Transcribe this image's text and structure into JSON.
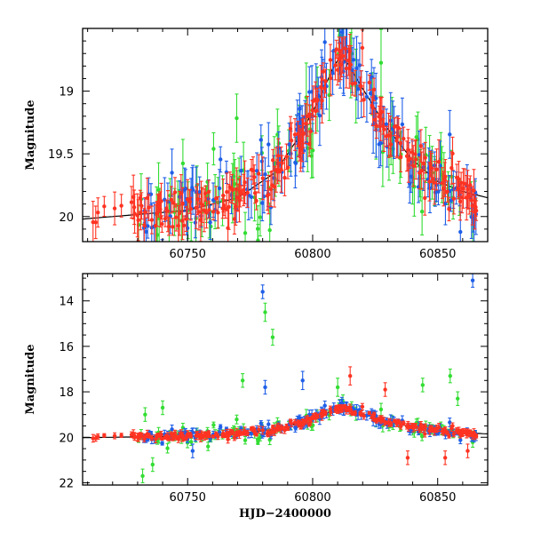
{
  "chart_data": [
    {
      "id": "top",
      "type": "scatter",
      "title": "",
      "xlabel": "",
      "ylabel": "Magnitude",
      "xlim": [
        60708,
        60870
      ],
      "ylim": [
        20.2,
        18.5
      ],
      "y_inverted": true,
      "xticks_major": [
        60750,
        60800,
        60850
      ],
      "xtick_labels": [
        "60750",
        "60800",
        "60850"
      ],
      "xticks_minor_step": 10,
      "yticks_major": [
        19,
        19.5,
        20
      ],
      "ytick_labels": [
        "19",
        "19.5",
        "20"
      ],
      "yticks_minor_step": 0.1,
      "model_curve": [
        [
          60708,
          20.02
        ],
        [
          60750,
          19.95
        ],
        [
          60770,
          19.85
        ],
        [
          60785,
          19.65
        ],
        [
          60795,
          19.35
        ],
        [
          60803,
          19.05
        ],
        [
          60808,
          18.82
        ],
        [
          60811,
          18.72
        ],
        [
          60814,
          18.78
        ],
        [
          60820,
          18.98
        ],
        [
          60830,
          19.3
        ],
        [
          60840,
          19.55
        ],
        [
          60850,
          19.72
        ],
        [
          60860,
          19.8
        ],
        [
          60870,
          19.85
        ]
      ],
      "series_colors": {
        "green": "#33dd33",
        "blue": "#1f5fe8",
        "red": "#ff3322"
      }
    },
    {
      "id": "bottom",
      "type": "scatter",
      "title": "",
      "xlabel": "HJD−2400000",
      "ylabel": "Magnitude",
      "xlim": [
        60708,
        60870
      ],
      "ylim": [
        22.1,
        12.8
      ],
      "y_inverted": true,
      "xticks_major": [
        60750,
        60800,
        60850
      ],
      "xtick_labels": [
        "60750",
        "60800",
        "60850"
      ],
      "xticks_minor_step": 10,
      "yticks_major": [
        14,
        16,
        18,
        20,
        22
      ],
      "ytick_labels": [
        "14",
        "16",
        "18",
        "20",
        "22"
      ],
      "yticks_minor_step": 0.5,
      "model_curve": [
        [
          60708,
          20.02
        ],
        [
          60750,
          19.95
        ],
        [
          60770,
          19.85
        ],
        [
          60785,
          19.65
        ],
        [
          60795,
          19.35
        ],
        [
          60803,
          19.05
        ],
        [
          60808,
          18.82
        ],
        [
          60811,
          18.72
        ],
        [
          60814,
          18.78
        ],
        [
          60820,
          18.98
        ],
        [
          60830,
          19.3
        ],
        [
          60840,
          19.55
        ],
        [
          60850,
          19.72
        ],
        [
          60860,
          19.8
        ],
        [
          60870,
          19.85
        ]
      ],
      "outliers": [
        {
          "x": 60780,
          "y": 13.6,
          "err": 0.3,
          "color": "blue"
        },
        {
          "x": 60864,
          "y": 13.1,
          "err": 0.3,
          "color": "blue"
        },
        {
          "x": 60784,
          "y": 15.6,
          "err": 0.35,
          "color": "green"
        },
        {
          "x": 60781,
          "y": 14.5,
          "err": 0.4,
          "color": "green"
        },
        {
          "x": 60796,
          "y": 17.5,
          "err": 0.4,
          "color": "blue"
        },
        {
          "x": 60781,
          "y": 17.8,
          "err": 0.3,
          "color": "blue"
        },
        {
          "x": 60772,
          "y": 17.5,
          "err": 0.3,
          "color": "green"
        },
        {
          "x": 60815,
          "y": 17.3,
          "err": 0.4,
          "color": "red"
        },
        {
          "x": 60810,
          "y": 17.8,
          "err": 0.4,
          "color": "green"
        },
        {
          "x": 60829,
          "y": 17.9,
          "err": 0.3,
          "color": "red"
        },
        {
          "x": 60844,
          "y": 17.7,
          "err": 0.3,
          "color": "green"
        },
        {
          "x": 60855,
          "y": 17.3,
          "err": 0.3,
          "color": "green"
        },
        {
          "x": 60733,
          "y": 19.0,
          "err": 0.3,
          "color": "green"
        },
        {
          "x": 60740,
          "y": 18.7,
          "err": 0.3,
          "color": "green"
        },
        {
          "x": 60732,
          "y": 21.7,
          "err": 0.3,
          "color": "green"
        },
        {
          "x": 60736,
          "y": 21.2,
          "err": 0.3,
          "color": "green"
        },
        {
          "x": 60752,
          "y": 20.6,
          "err": 0.3,
          "color": "blue"
        },
        {
          "x": 60838,
          "y": 20.9,
          "err": 0.3,
          "color": "red"
        },
        {
          "x": 60853,
          "y": 20.9,
          "err": 0.3,
          "color": "red"
        },
        {
          "x": 60862,
          "y": 20.6,
          "err": 0.3,
          "color": "red"
        },
        {
          "x": 60858,
          "y": 18.3,
          "err": 0.3,
          "color": "green"
        }
      ],
      "series_colors": {
        "green": "#33dd33",
        "blue": "#1f5fe8",
        "red": "#ff3322"
      }
    }
  ]
}
